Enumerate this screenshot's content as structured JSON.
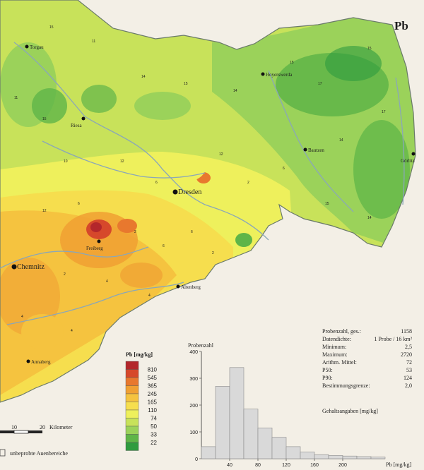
{
  "map": {
    "element_symbol": "Pb",
    "cities": [
      {
        "name": "Torgau"
      },
      {
        "name": "Hoyerswerda"
      },
      {
        "name": "Riesa"
      },
      {
        "name": "Bautzen"
      },
      {
        "name": "Görlitz"
      },
      {
        "name": "Dresden"
      },
      {
        "name": "Freiberg"
      },
      {
        "name": "Chemnitz"
      },
      {
        "name": "Altenberg"
      },
      {
        "name": "Annaberg"
      }
    ],
    "scale_bar": {
      "ticks": [
        "10",
        "20"
      ],
      "unit": "Kilometer"
    },
    "unsampled_note": "unbeprobte Auenbereiche"
  },
  "legend": {
    "title": "Pb [mg/kg]",
    "classes": [
      {
        "value": "810",
        "color": "#b3272b"
      },
      {
        "value": "545",
        "color": "#d6482b"
      },
      {
        "value": "365",
        "color": "#e8782e"
      },
      {
        "value": "245",
        "color": "#f0a033"
      },
      {
        "value": "165",
        "color": "#f5c33f"
      },
      {
        "value": "110",
        "color": "#f6de4e"
      },
      {
        "value": "74",
        "color": "#eef05c"
      },
      {
        "value": "50",
        "color": "#c8e25a"
      },
      {
        "value": "33",
        "color": "#9bd25a"
      },
      {
        "value": "22",
        "color": "#5fb548"
      },
      {
        "value": "",
        "color": "#2f9b3f"
      }
    ]
  },
  "stats": {
    "rows": [
      {
        "label": "Probenzahl, ges.:",
        "value": "1158"
      },
      {
        "label": "Datendichte:",
        "value": "1 Probe / 16 km²"
      },
      {
        "label": "Minimum:",
        "value": "2,5"
      },
      {
        "label": "Maximum:",
        "value": "2720"
      },
      {
        "label": "Arithm. Mittel:",
        "value": "72"
      },
      {
        "label": "P50:",
        "value": "53"
      },
      {
        "label": "P90:",
        "value": "124"
      },
      {
        "label": "Bestimmungsgrenze:",
        "value": "2,0"
      }
    ],
    "footnote": "Gehaltsangaben [mg/kg]"
  },
  "chart_data": {
    "type": "bar",
    "ylabel": "Probenzahl",
    "xlabel": "Pb [mg/kg]",
    "bin_edges": [
      0,
      20,
      40,
      60,
      80,
      100,
      120,
      140,
      160,
      180,
      200,
      220,
      240,
      260
    ],
    "values": [
      45,
      270,
      340,
      185,
      115,
      80,
      45,
      25,
      15,
      12,
      10,
      8,
      6
    ],
    "ylim": [
      0,
      400
    ],
    "yticks": [
      "0",
      "100",
      "200",
      "300",
      "400"
    ],
    "xticks": [
      "40",
      "80",
      "120",
      "160",
      "200"
    ],
    "xtick_values": [
      40,
      80,
      120,
      160,
      200
    ],
    "bar_color": "#d9d9d9"
  }
}
